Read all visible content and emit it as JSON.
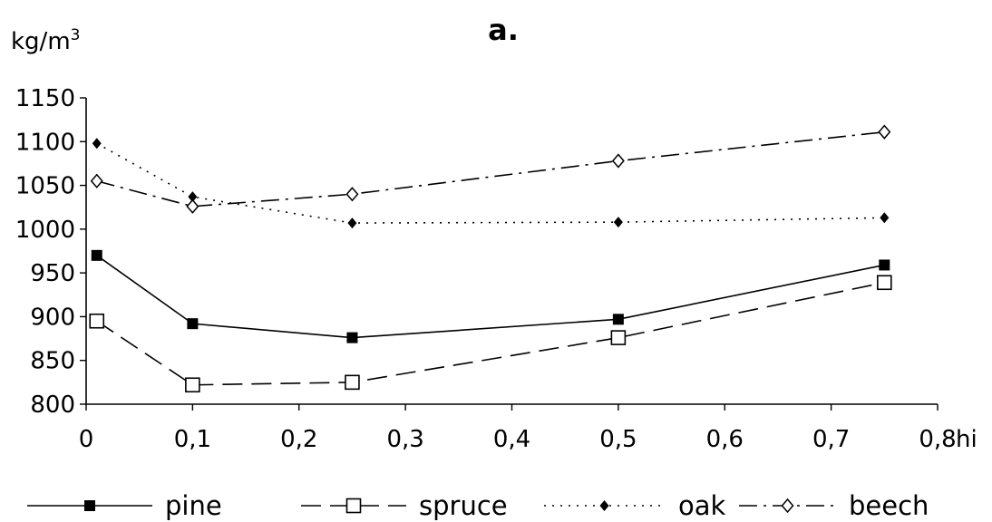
{
  "chart_data": {
    "type": "line",
    "title": "a.",
    "ylabel_base": "kg/m",
    "ylabel_sup": "3",
    "xlabel": "hi",
    "xlim": [
      0,
      0.8
    ],
    "ylim": [
      800,
      1150
    ],
    "x_ticks": [
      0,
      0.1,
      0.2,
      0.3,
      0.4,
      0.5,
      0.6,
      0.7,
      0.8
    ],
    "x_tick_labels": [
      "0",
      "0,1",
      "0,2",
      "0,3",
      "0,4",
      "0,5",
      "0,6",
      "0,7",
      "0,8"
    ],
    "y_ticks": [
      800,
      850,
      900,
      950,
      1000,
      1050,
      1100,
      1150
    ],
    "y_tick_labels": [
      "800",
      "850",
      "900",
      "950",
      "1000",
      "1050",
      "1100",
      "1150"
    ],
    "grid": false,
    "legend_position": "bottom",
    "x": [
      0.01,
      0.1,
      0.25,
      0.5,
      0.75
    ],
    "series": [
      {
        "name": "pine",
        "values": [
          970,
          892,
          876,
          897,
          959
        ],
        "marker": "filled-square",
        "line": "solid"
      },
      {
        "name": "spruce",
        "values": [
          895,
          822,
          825,
          876,
          939
        ],
        "marker": "open-square",
        "line": "dashed"
      },
      {
        "name": "oak",
        "values": [
          1098,
          1037,
          1007,
          1008,
          1013
        ],
        "marker": "filled-diamond",
        "line": "dotted"
      },
      {
        "name": "beech",
        "values": [
          1055,
          1026,
          1040,
          1078,
          1111
        ],
        "marker": "open-diamond",
        "line": "dash-dot"
      }
    ],
    "colors": {
      "ink": "#000000",
      "background": "#ffffff"
    }
  }
}
